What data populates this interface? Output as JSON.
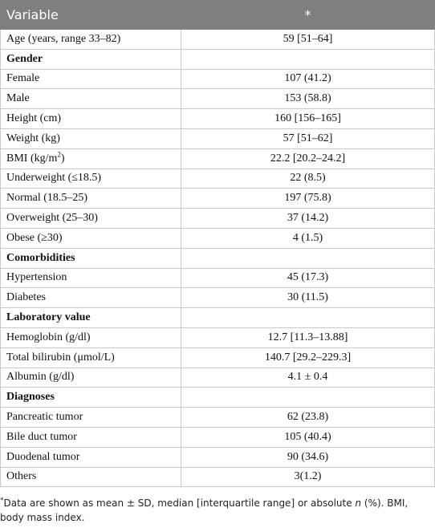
{
  "table": {
    "header": [
      "Variable",
      "*"
    ],
    "rows": [
      {
        "label": "Age (years, range 33–82)",
        "value": "59 [51–64]"
      },
      {
        "label": "Gender",
        "bold": true
      },
      {
        "label": "Female",
        "value": "107 (41.2)"
      },
      {
        "label": "Male",
        "value": "153 (58.8)"
      },
      {
        "label": "Height (cm)",
        "value": "160 [156–165]"
      },
      {
        "label": "Weight (kg)",
        "value": "57 [51–62]"
      },
      {
        "label": [
          "BMI (kg/m",
          "2",
          ")"
        ],
        "value": "22.2 [20.2–24.2]"
      },
      {
        "label": "Underweight (≤18.5)",
        "value": "22 (8.5)"
      },
      {
        "label": "Normal (18.5–25)",
        "value": "197 (75.8)"
      },
      {
        "label": "Overweight (25–30)",
        "value": "37 (14.2)"
      },
      {
        "label": "Obese (≥30)",
        "value": "4 (1.5)"
      },
      {
        "label": "Comorbidities",
        "bold": true
      },
      {
        "label": "Hypertension",
        "value": "45 (17.3)"
      },
      {
        "label": "Diabetes",
        "value": "30 (11.5)"
      },
      {
        "label": "Laboratory value",
        "bold": true
      },
      {
        "label": "Hemoglobin (g/dl)",
        "value": "12.7 [11.3–13.88]"
      },
      {
        "label": "Total bilirubin (μmol/L)",
        "value": "140.7 [29.2–229.3]"
      },
      {
        "label": "Albumin (g/dl)",
        "value": "4.1 ± 0.4"
      },
      {
        "label": "Diagnoses",
        "bold": true
      },
      {
        "label": "Pancreatic tumor",
        "value": "62 (23.8)"
      },
      {
        "label": "Bile duct tumor",
        "value": "105 (40.4)"
      },
      {
        "label": "Duodenal tumor",
        "value": "90 (34.6)"
      },
      {
        "label": "Others",
        "value": "3(1.2)"
      }
    ],
    "footnote": [
      "*",
      "Data are shown as mean ± SD, median [interquartile range] or absolute ",
      "n",
      " (%). BMI, body mass index."
    ]
  }
}
